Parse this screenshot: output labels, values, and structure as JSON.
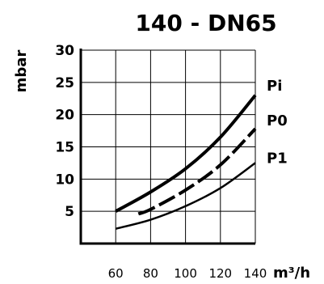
{
  "chart_data": {
    "type": "line",
    "title": "140 - DN65",
    "ylabel": "mbar",
    "xlabel": "m³/h",
    "xlim": [
      40,
      140
    ],
    "ylim": [
      0,
      30
    ],
    "x_ticks": [
      60,
      80,
      100,
      120,
      140
    ],
    "y_ticks": [
      5,
      10,
      15,
      20,
      25,
      30
    ],
    "grid": true,
    "series": [
      {
        "name": "Pi",
        "style": "solid",
        "x": [
          60,
          80,
          100,
          120,
          140
        ],
        "y": [
          5,
          8,
          11.6,
          16.5,
          23
        ]
      },
      {
        "name": "P0",
        "style": "dashed",
        "x": [
          73,
          80,
          100,
          120,
          140
        ],
        "y": [
          4.6,
          5.3,
          8.3,
          12.2,
          17.8
        ]
      },
      {
        "name": "P1",
        "style": "solid",
        "x": [
          60,
          80,
          100,
          120,
          140
        ],
        "y": [
          2.3,
          3.7,
          5.8,
          8.6,
          12.5
        ]
      }
    ]
  }
}
